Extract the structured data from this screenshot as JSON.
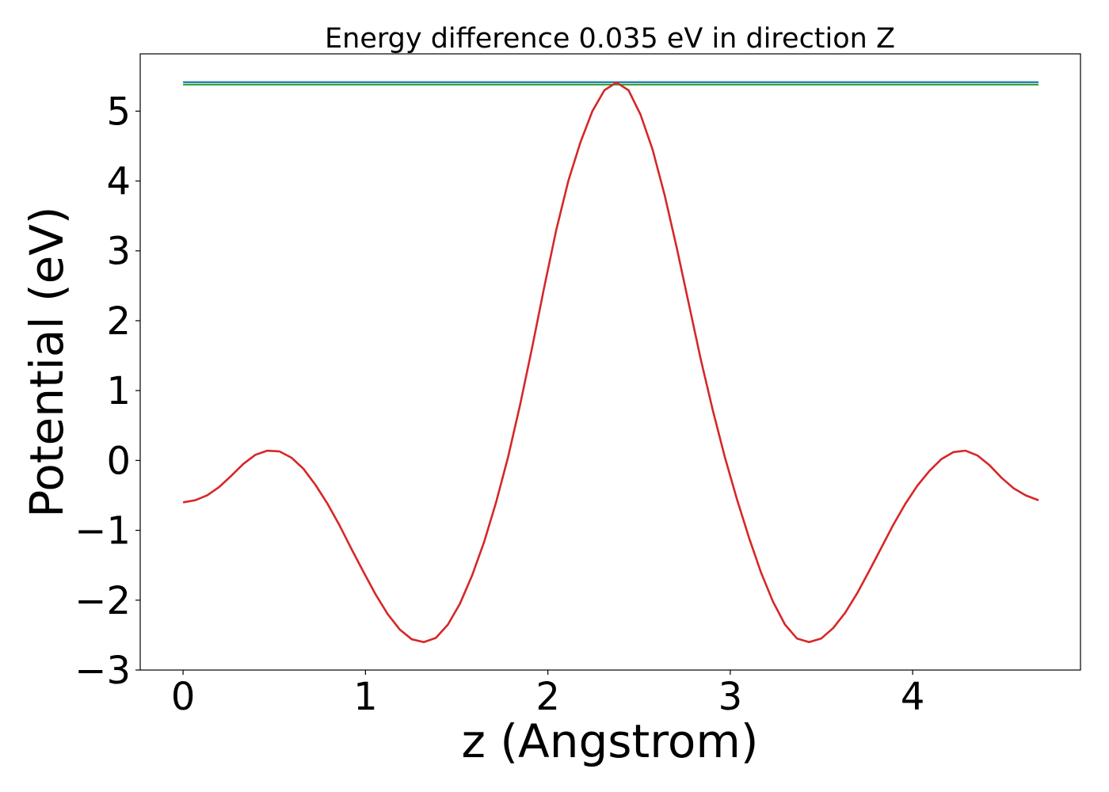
{
  "chart_data": {
    "type": "line",
    "title": "Energy difference 0.035 eV in direction Z",
    "xlabel": "z (Angstrom)",
    "ylabel": "Potential (eV)",
    "xlim": [
      -0.235,
      4.92
    ],
    "ylim": [
      -3.0,
      5.82
    ],
    "xticks": [
      0,
      1,
      2,
      3,
      4
    ],
    "yticks": [
      -3,
      -2,
      -1,
      0,
      1,
      2,
      3,
      4,
      5
    ],
    "xtick_labels": [
      "0",
      "1",
      "2",
      "3",
      "4"
    ],
    "ytick_labels": [
      "−3",
      "−2",
      "−1",
      "0",
      "1",
      "2",
      "3",
      "4",
      "5"
    ],
    "grid": false,
    "legend": "none",
    "series": [
      {
        "color": "#1f77b4",
        "x": [
          0,
          4.69
        ],
        "y": [
          5.415,
          5.415
        ]
      },
      {
        "color": "#2ca02c",
        "x": [
          0,
          4.69
        ],
        "y": [
          5.38,
          5.38
        ]
      },
      {
        "color": "#d62728",
        "x": [
          0,
          0.066,
          0.132,
          0.198,
          0.264,
          0.33,
          0.396,
          0.462,
          0.528,
          0.594,
          0.66,
          0.726,
          0.792,
          0.858,
          0.924,
          0.99,
          1.056,
          1.122,
          1.188,
          1.254,
          1.32,
          1.386,
          1.452,
          1.518,
          1.584,
          1.65,
          1.716,
          1.782,
          1.848,
          1.914,
          1.98,
          2.046,
          2.112,
          2.178,
          2.244,
          2.31,
          2.376,
          2.442,
          2.508,
          2.574,
          2.64,
          2.706,
          2.772,
          2.838,
          2.904,
          2.97,
          3.036,
          3.102,
          3.168,
          3.234,
          3.3,
          3.366,
          3.432,
          3.498,
          3.564,
          3.63,
          3.696,
          3.762,
          3.828,
          3.894,
          3.96,
          4.026,
          4.092,
          4.158,
          4.224,
          4.29,
          4.356,
          4.422,
          4.488,
          4.554,
          4.62,
          4.69
        ],
        "y": [
          -0.6,
          -0.57,
          -0.5,
          -0.38,
          -0.22,
          -0.05,
          0.08,
          0.14,
          0.13,
          0.04,
          -0.12,
          -0.35,
          -0.62,
          -0.93,
          -1.27,
          -1.6,
          -1.92,
          -2.2,
          -2.42,
          -2.56,
          -2.6,
          -2.54,
          -2.35,
          -2.05,
          -1.65,
          -1.17,
          -0.6,
          0.05,
          0.8,
          1.62,
          2.48,
          3.3,
          4.0,
          4.55,
          5.0,
          5.3,
          5.41,
          5.3,
          4.95,
          4.45,
          3.8,
          3.05,
          2.25,
          1.45,
          0.72,
          0.05,
          -0.55,
          -1.1,
          -1.6,
          -2.02,
          -2.35,
          -2.55,
          -2.6,
          -2.55,
          -2.4,
          -2.18,
          -1.9,
          -1.58,
          -1.25,
          -0.92,
          -0.62,
          -0.36,
          -0.15,
          0.02,
          0.12,
          0.14,
          0.07,
          -0.07,
          -0.25,
          -0.4,
          -0.5,
          -0.57
        ]
      }
    ]
  }
}
